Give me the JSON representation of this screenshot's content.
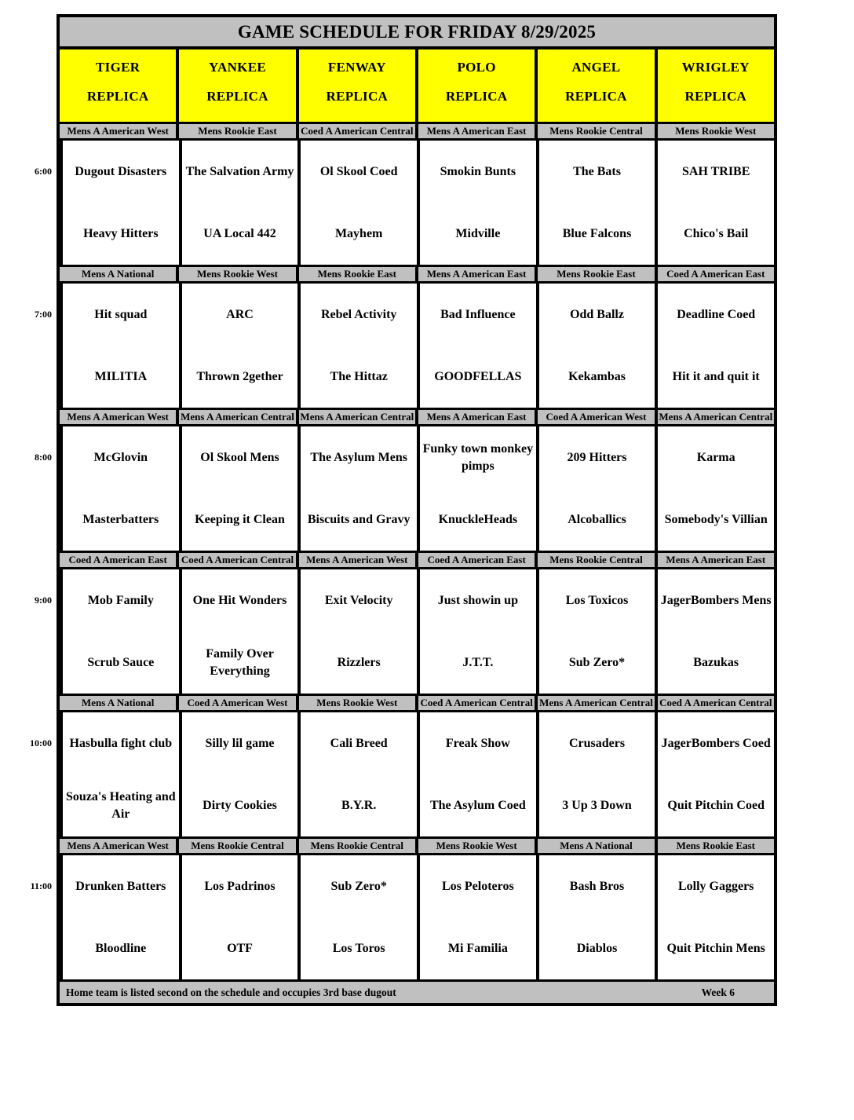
{
  "title": "GAME SCHEDULE FOR FRIDAY 8/29/2025",
  "colors": {
    "header_bg": "#c0c0c0",
    "field_bg": "#ffff00",
    "division_bg": "#c0c0c0",
    "border": "#000000"
  },
  "fields": [
    {
      "name": "TIGER",
      "replica": "REPLICA"
    },
    {
      "name": "YANKEE",
      "replica": "REPLICA"
    },
    {
      "name": "FENWAY",
      "replica": "REPLICA"
    },
    {
      "name": "POLO",
      "replica": "REPLICA"
    },
    {
      "name": "ANGEL",
      "replica": "REPLICA"
    },
    {
      "name": "WRIGLEY",
      "replica": "REPLICA"
    }
  ],
  "rows": [
    {
      "time": "6:00",
      "games": [
        {
          "division": "Mens A American West",
          "away": "Dugout Disasters",
          "home": "Heavy Hitters"
        },
        {
          "division": "Mens Rookie East",
          "away": "The Salvation Army",
          "home": "UA Local 442"
        },
        {
          "division": "Coed A American Central",
          "away": "Ol Skool Coed",
          "home": "Mayhem"
        },
        {
          "division": "Mens A American East",
          "away": "Smokin Bunts",
          "home": "Midville"
        },
        {
          "division": "Mens Rookie Central",
          "away": "The Bats",
          "home": "Blue Falcons"
        },
        {
          "division": "Mens Rookie West",
          "away": "SAH TRIBE",
          "home": "Chico's Bail"
        }
      ]
    },
    {
      "time": "7:00",
      "games": [
        {
          "division": "Mens A National",
          "away": "Hit squad",
          "home": "MILITIA"
        },
        {
          "division": "Mens Rookie West",
          "away": "ARC",
          "home": "Thrown 2gether"
        },
        {
          "division": "Mens Rookie East",
          "away": "Rebel Activity",
          "home": "The Hittaz"
        },
        {
          "division": "Mens A American East",
          "away": "Bad Influence",
          "home": "GOODFELLAS"
        },
        {
          "division": "Mens Rookie East",
          "away": "Odd Ballz",
          "home": "Kekambas"
        },
        {
          "division": "Coed A American East",
          "away": "Deadline Coed",
          "home": "Hit it and quit it"
        }
      ]
    },
    {
      "time": "8:00",
      "games": [
        {
          "division": "Mens A American West",
          "away": "McGlovin",
          "home": "Masterbatters"
        },
        {
          "division": "Mens A American Central",
          "away": "Ol Skool Mens",
          "home": "Keeping it Clean"
        },
        {
          "division": "Mens A American Central",
          "away": "The Asylum Mens",
          "home": "Biscuits and Gravy"
        },
        {
          "division": "Mens A American East",
          "away": "Funky town monkey pimps",
          "home": "KnuckleHeads"
        },
        {
          "division": "Coed A American West",
          "away": "209 Hitters",
          "home": "Alcoballics"
        },
        {
          "division": "Mens A American Central",
          "away": "Karma",
          "home": "Somebody's Villian"
        }
      ]
    },
    {
      "time": "9:00",
      "games": [
        {
          "division": "Coed A American East",
          "away": "Mob Family",
          "home": "Scrub Sauce"
        },
        {
          "division": "Coed A American Central",
          "away": "One Hit Wonders",
          "home": "Family Over Everything"
        },
        {
          "division": "Mens A American West",
          "away": "Exit Velocity",
          "home": "Rizzlers"
        },
        {
          "division": "Coed A American East",
          "away": "Just showin up",
          "home": "J.T.T."
        },
        {
          "division": "Mens Rookie Central",
          "away": "Los Toxicos",
          "home": "Sub Zero*"
        },
        {
          "division": "Mens A American East",
          "away": "JagerBombers Mens",
          "home": "Bazukas"
        }
      ]
    },
    {
      "time": "10:00",
      "games": [
        {
          "division": "Mens A National",
          "away": "Hasbulla fight club",
          "home": "Souza's Heating and Air"
        },
        {
          "division": "Coed A American West",
          "away": "Silly lil game",
          "home": "Dirty Cookies"
        },
        {
          "division": "Mens Rookie West",
          "away": "Cali Breed",
          "home": "B.Y.R."
        },
        {
          "division": "Coed A American Central",
          "away": "Freak Show",
          "home": "The Asylum Coed"
        },
        {
          "division": "Mens A American Central",
          "away": "Crusaders",
          "home": "3 Up 3 Down"
        },
        {
          "division": "Coed A American Central",
          "away": "JagerBombers Coed",
          "home": "Quit Pitchin Coed"
        }
      ]
    },
    {
      "time": "11:00",
      "games": [
        {
          "division": "Mens A American West",
          "away": "Drunken Batters",
          "home": "Bloodline"
        },
        {
          "division": "Mens Rookie Central",
          "away": "Los Padrinos",
          "home": "OTF"
        },
        {
          "division": "Mens Rookie Central",
          "away": "Sub Zero*",
          "home": "Los Toros"
        },
        {
          "division": "Mens Rookie West",
          "away": "Los Peloteros",
          "home": "Mi Familia"
        },
        {
          "division": "Mens A National",
          "away": "Bash Bros",
          "home": "Diablos"
        },
        {
          "division": "Mens Rookie East",
          "away": "Lolly Gaggers",
          "home": "Quit Pitchin Mens"
        }
      ]
    }
  ],
  "footer": {
    "note": "Home team is listed second on the schedule and occupies 3rd base dugout",
    "week": "Week 6"
  }
}
